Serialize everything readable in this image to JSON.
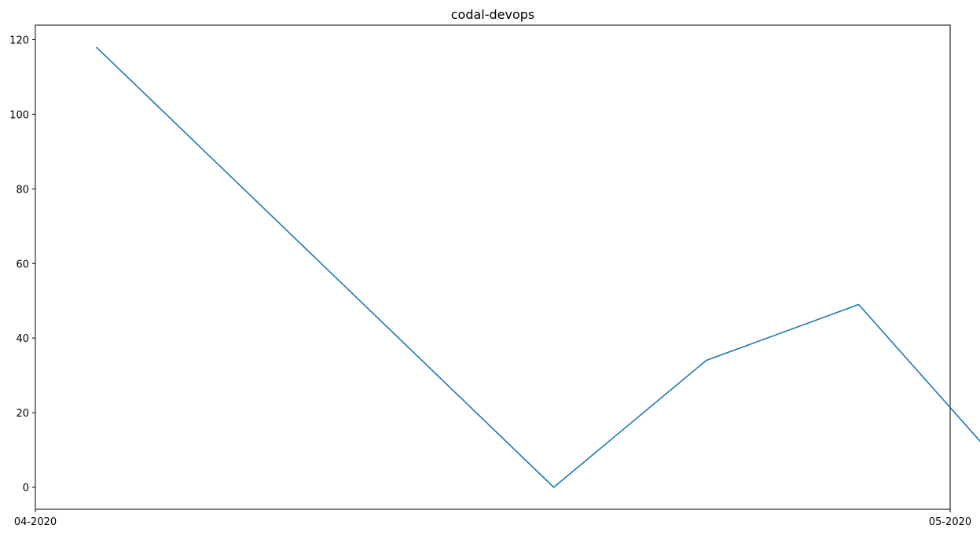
{
  "chart_data": {
    "type": "line",
    "title": "codal-devops",
    "xlabel": "",
    "ylabel": "",
    "x_ticks": [
      "04-2020",
      "05-2020"
    ],
    "series": [
      {
        "x": [
          "2020-04-03",
          "2020-04-18",
          "2020-04-23",
          "2020-04-28",
          "2020-05-03"
        ],
        "values": [
          118,
          0,
          34,
          49,
          3
        ]
      }
    ],
    "ylim": [
      -5.9,
      123.9
    ],
    "y_ticks": [
      0,
      20,
      40,
      60,
      80,
      100,
      120
    ],
    "grid": false,
    "line_color": "#1f77b4"
  }
}
